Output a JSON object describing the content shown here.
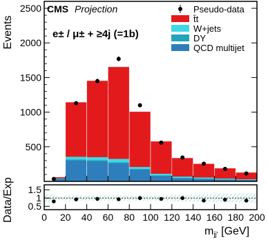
{
  "chart_data": {
    "type": "bar",
    "x_bin_edges": [
      0,
      10,
      20,
      40,
      60,
      80,
      100,
      120,
      140,
      160,
      180,
      200
    ],
    "ylim": [
      0,
      2600
    ],
    "xlim": [
      0,
      200
    ],
    "ratio_ylim": [
      0.3,
      1.8
    ],
    "series": [
      {
        "name": "t̄t",
        "color": "#e31a1c",
        "values": [
          0,
          20,
          790,
          1105,
          1330,
          800,
          470,
          270,
          200,
          150,
          100
        ]
      },
      {
        "name": "W+jets",
        "color": "#3fd7e4",
        "values": [
          0,
          5,
          40,
          45,
          50,
          30,
          25,
          20,
          18,
          14,
          10
        ]
      },
      {
        "name": "DY",
        "color": "#22a4bb",
        "values": [
          0,
          3,
          15,
          15,
          15,
          8,
          5,
          4,
          3,
          2,
          2
        ]
      },
      {
        "name": "QCD multijet",
        "color": "#2f7ebc",
        "values": [
          0,
          35,
          300,
          290,
          260,
          170,
          80,
          45,
          35,
          25,
          18
        ]
      }
    ],
    "pseudo_data": {
      "name": "Pseudo-data",
      "x": [
        9,
        30,
        50,
        70,
        90,
        110,
        130,
        150,
        170,
        190
      ],
      "y": [
        35,
        1130,
        1450,
        1770,
        1100,
        560,
        345,
        255,
        180,
        115
      ]
    },
    "ratio_points": {
      "x": [
        9,
        30,
        50,
        70,
        90,
        110,
        130,
        150,
        170,
        190
      ],
      "y": [
        0.8,
        0.92,
        0.95,
        0.93,
        1.0,
        0.95,
        1.0,
        0.85,
        0.9,
        0.85
      ]
    },
    "y_ticks": [
      500,
      1000,
      1500,
      2000,
      2500
    ],
    "y_tick_labels": [
      "500",
      "1000",
      "1500",
      "2000",
      "2500"
    ],
    "x_ticks": [
      0,
      20,
      40,
      60,
      80,
      100,
      120,
      140,
      160,
      180,
      200
    ],
    "x_tick_labels": [
      "0",
      "20",
      "40",
      "60",
      "80",
      "100",
      "120",
      "140",
      "160",
      "180",
      "200"
    ],
    "ratio_ticks": [
      0.5,
      1,
      1.5
    ],
    "ratio_tick_labels": [
      "0.5",
      "1",
      "1.5"
    ],
    "ylabel": "Events",
    "ratio_ylabel": "Data/Exp",
    "xlabel": "m",
    "xlabel_sub": "jj'",
    "xlabel_unit": " [GeV]",
    "legend_position": "top-right"
  },
  "header": {
    "cms": "CMS",
    "projection": "Projection",
    "channel": "e± / μ± + ≥4j (=1b)"
  },
  "colors": {
    "uncertainty_band": "#79c9bd",
    "axes": "#000000"
  }
}
